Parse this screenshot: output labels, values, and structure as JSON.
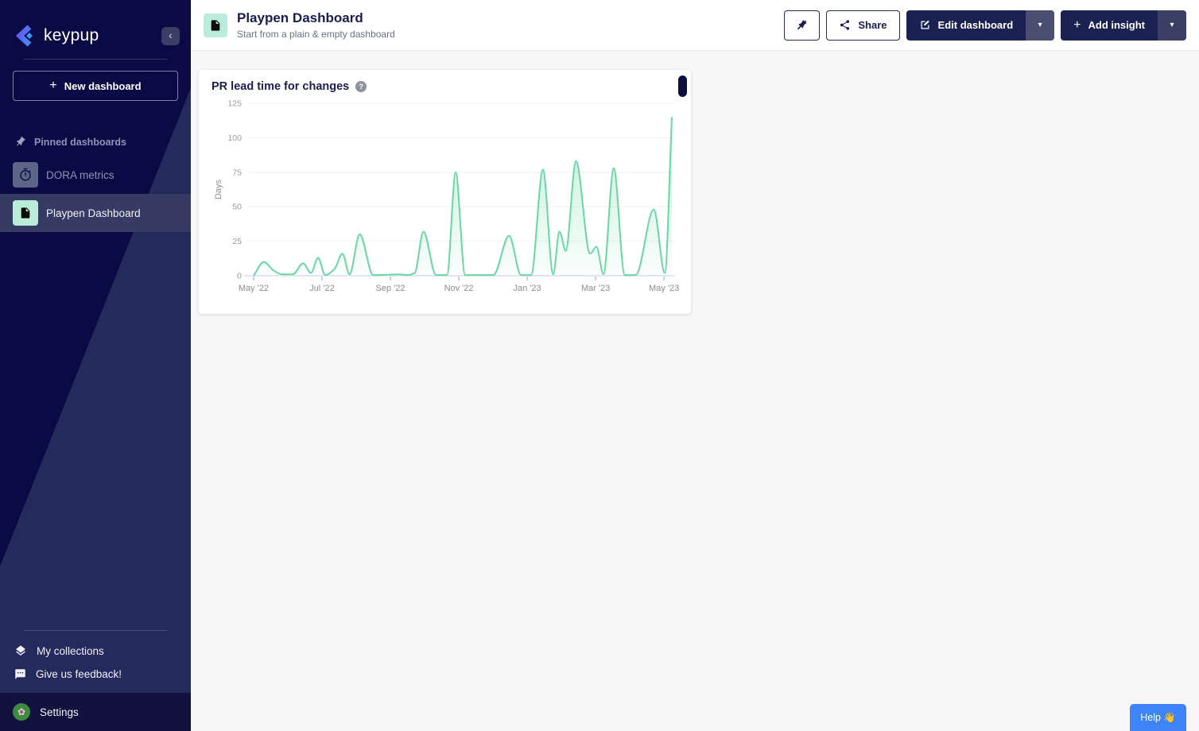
{
  "sidebar": {
    "brand": "keypup",
    "new_dashboard_label": "New dashboard",
    "section_label": "Pinned dashboards",
    "items": [
      {
        "label": "DORA metrics"
      },
      {
        "label": "Playpen Dashboard"
      }
    ],
    "footer_links": [
      {
        "label": "My collections"
      },
      {
        "label": "Give us feedback!"
      }
    ],
    "settings_label": "Settings"
  },
  "header": {
    "title": "Playpen Dashboard",
    "subtitle": "Start from a plain & empty dashboard",
    "buttons": {
      "share": "Share",
      "edit": "Edit dashboard",
      "add": "Add insight"
    }
  },
  "card": {
    "title": "PR lead time for changes"
  },
  "help_button_label": "Help 👋",
  "icons": {
    "plus": "+",
    "caret": "▾",
    "collapse": "‹",
    "question": "?"
  },
  "colors": {
    "accent_green": "#68d7a4",
    "navy": "#1b2150",
    "help_blue": "#3e83f8",
    "mint_tile": "#b9edd9",
    "sidebar_dark": "#0a0a44",
    "sidebar_light": "#252a5c"
  },
  "chart_data": {
    "type": "area",
    "title": "PR lead time for changes",
    "ylabel": "Days",
    "xlabel": "",
    "ylim": [
      0,
      125
    ],
    "yticks": [
      0,
      25,
      50,
      75,
      100,
      125
    ],
    "xtick_labels": [
      "May '22",
      "Jul '22",
      "Sep '22",
      "Nov '22",
      "Jan '23",
      "Mar '23",
      "May '23"
    ],
    "xtick_weeks": [
      0,
      8.7,
      17.4,
      26.1,
      34.8,
      43.5,
      52.2
    ],
    "x_range_weeks": [
      -0.6,
      53.6
    ],
    "x_unit": "weeks since 2022-05-01",
    "x_weeks": [
      0,
      1.3,
      2.5,
      3.6,
      5,
      6.3,
      7.3,
      8.2,
      9.1,
      10.3,
      11.3,
      12.2,
      13.5,
      15.2,
      17,
      18.5,
      19.6,
      20.5,
      21.6,
      23.2,
      24.6,
      25.7,
      26.9,
      28.5,
      30.5,
      32.5,
      34,
      35.3,
      36.8,
      38.1,
      38.9,
      39.7,
      41,
      42.8,
      43.6,
      44.5,
      45.8,
      47.2,
      48.6,
      50.9,
      52.3,
      53.2
    ],
    "values": [
      0,
      10,
      4,
      1,
      1,
      9,
      2,
      13,
      0.5,
      5,
      16,
      1,
      30,
      0.5,
      0.7,
      1,
      0.5,
      2,
      32,
      0.5,
      0.5,
      75,
      0.5,
      0.5,
      0.5,
      29,
      0.5,
      0.5,
      77,
      1,
      32,
      18,
      83,
      16,
      21,
      1,
      78,
      0.5,
      0.5,
      48,
      2,
      115
    ],
    "line_color": "#68d7a4",
    "grid": true,
    "legend": false
  }
}
